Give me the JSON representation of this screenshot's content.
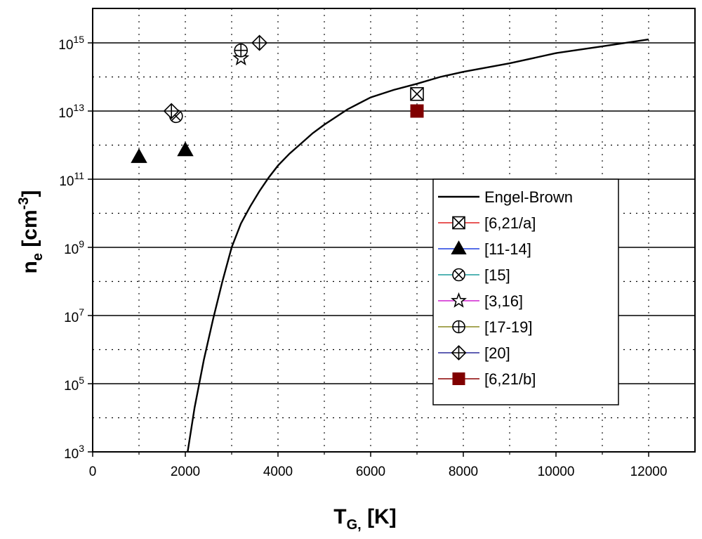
{
  "chart_data": {
    "type": "scatter",
    "title": "",
    "xlabel": "T",
    "xlabel_sub": "G,",
    "xlabel_rest": " [K]",
    "ylabel": "n",
    "ylabel_sub": "e",
    "ylabel_rest": " [cm",
    "ylabel_sup": "-3",
    "ylabel_end": "]",
    "xlim": [
      0,
      13000
    ],
    "ylim_log10": [
      3,
      16
    ],
    "y_scale": "log",
    "grid": true,
    "legend_position": "right",
    "x_ticks": [
      0,
      2000,
      4000,
      6000,
      8000,
      10000,
      12000
    ],
    "x_tick_labels": [
      "0",
      "2000",
      "4000",
      "6000",
      "8000",
      "10000",
      "12000"
    ],
    "y_tick_exponents": [
      3,
      5,
      7,
      9,
      11,
      13,
      15
    ],
    "y_tick_base": "10",
    "y_tick_sup": [
      "3",
      "5",
      "7",
      "9",
      "11",
      "13",
      "15"
    ],
    "curve": {
      "name": "Engel-Brown",
      "color": "#000000",
      "x": [
        2050,
        2200,
        2400,
        2600,
        2800,
        3000,
        3200,
        3400,
        3600,
        3800,
        4000,
        4250,
        4500,
        4750,
        5000,
        5500,
        6000,
        6500,
        7000,
        7500,
        8000,
        9000,
        10000,
        11000,
        12000
      ],
      "log10_y": [
        3.0,
        4.3,
        5.7,
        6.9,
        8.0,
        9.0,
        9.7,
        10.2,
        10.65,
        11.05,
        11.4,
        11.75,
        12.05,
        12.35,
        12.6,
        13.05,
        13.4,
        13.62,
        13.8,
        14.0,
        14.15,
        14.4,
        14.7,
        14.9,
        15.1
      ]
    },
    "series": [
      {
        "name": "[6,21/a]",
        "marker": "square-cross",
        "line_color": "#e02020",
        "fill": "#ffffff",
        "points": [
          {
            "x": 7000,
            "log10_y": 13.5
          }
        ]
      },
      {
        "name": "[11-14]",
        "marker": "triangle",
        "line_color": "#1f3fe0",
        "fill": "#000000",
        "points": [
          {
            "x": 1000,
            "log10_y": 11.65
          },
          {
            "x": 2000,
            "log10_y": 11.85
          }
        ]
      },
      {
        "name": "[15]",
        "marker": "circle-cross",
        "line_color": "#1b9c9c",
        "fill": "#ffffff",
        "points": [
          {
            "x": 1800,
            "log10_y": 12.85
          }
        ]
      },
      {
        "name": "[3,16]",
        "marker": "star",
        "line_color": "#d020d0",
        "fill": "#ffffff",
        "points": [
          {
            "x": 3200,
            "log10_y": 14.55
          }
        ]
      },
      {
        "name": "[17-19]",
        "marker": "circle-plus",
        "line_color": "#8a8a20",
        "fill": "#ffffff",
        "points": [
          {
            "x": 3200,
            "log10_y": 14.78
          }
        ]
      },
      {
        "name": "[20]",
        "marker": "diamond-plus",
        "line_color": "#2a2a9a",
        "fill": "#ffffff",
        "points": [
          {
            "x": 1700,
            "log10_y": 13.0
          },
          {
            "x": 3600,
            "log10_y": 15.0
          }
        ]
      },
      {
        "name": "[6,21/b]",
        "marker": "square-filled",
        "line_color": "#8b0000",
        "fill": "#800000",
        "points": [
          {
            "x": 7000,
            "log10_y": 13.0
          }
        ]
      }
    ]
  }
}
